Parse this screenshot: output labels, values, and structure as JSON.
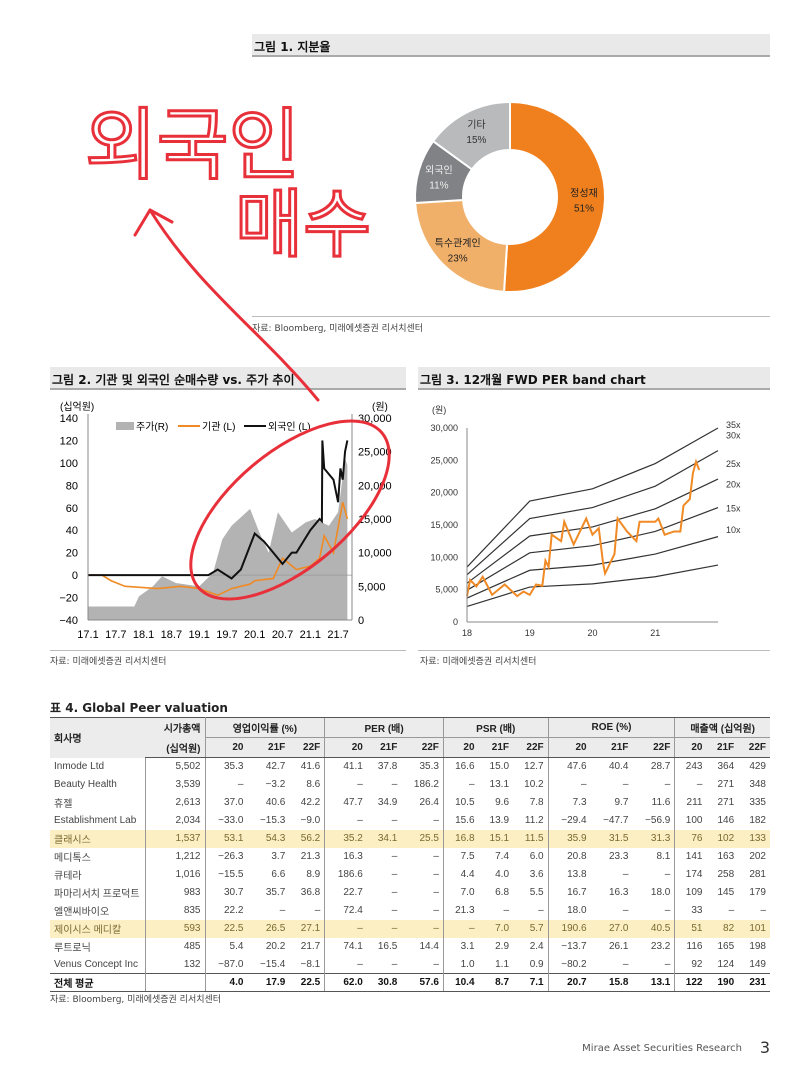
{
  "fig1": {
    "title": "그림 1. 지분율",
    "source": "자료: Bloomberg, 미래에셋증권 리서치센터",
    "slices": [
      {
        "label": "정성재",
        "pct": 51,
        "value_label": "51%",
        "color": "#f0801e"
      },
      {
        "label": "특수관계인",
        "pct": 23,
        "value_label": "23%",
        "color": "#f1b06a"
      },
      {
        "label": "외국인",
        "pct": 11,
        "value_label": "11%",
        "color": "#808285"
      },
      {
        "label": "기타",
        "pct": 15,
        "value_label": "15%",
        "color": "#b9babc"
      }
    ]
  },
  "annotation": {
    "line1": "외국인",
    "line2": "매수",
    "color": "#e8303a"
  },
  "fig2": {
    "title": "그림 2. 기관 및 외국인 순매수량 vs. 주가 추이",
    "source": "자료: 미래에셋증권 리서치센터"
  },
  "fig3": {
    "title": "그림 3. 12개월 FWD PER band chart",
    "source": "자료: 미래에셋증권 리서치센터"
  },
  "chart_data": [
    {
      "type": "line",
      "title": "기관 및 외국인 순매수량 vs. 주가 추이",
      "ylabel": "(십억원)",
      "y2label": "(원)",
      "ylim": [
        -40,
        140
      ],
      "y2lim": [
        0,
        30000
      ],
      "yticks": [
        "140",
        "120",
        "100",
        "80",
        "60",
        "40",
        "20",
        "0",
        "−20",
        "−40"
      ],
      "y2ticks": [
        "30,000",
        "25,000",
        "20,000",
        "15,000",
        "10,000",
        "5,000",
        "0"
      ],
      "xticks": [
        "17.1",
        "17.7",
        "18.1",
        "18.7",
        "19.1",
        "19.7",
        "20.1",
        "20.7",
        "21.1",
        "21.7"
      ],
      "x_unit": "months since 17.1",
      "series": [
        {
          "name": "주가(R)",
          "kind": "area",
          "color": "#b3b3b3",
          "points": [
            [
              0,
              2000
            ],
            [
              10,
              2000
            ],
            [
              11,
              3500
            ],
            [
              14,
              5000
            ],
            [
              16,
              6500
            ],
            [
              19,
              5500
            ],
            [
              24,
              5000
            ],
            [
              27,
              7000
            ],
            [
              29,
              12000
            ],
            [
              31,
              14000
            ],
            [
              35,
              16500
            ],
            [
              37,
              13000
            ],
            [
              39,
              10000
            ],
            [
              41,
              16000
            ],
            [
              44,
              13000
            ],
            [
              47,
              14500
            ],
            [
              49,
              15000
            ],
            [
              52,
              14000
            ],
            [
              54,
              16000
            ],
            [
              55.5,
              24000
            ],
            [
              56,
              23000
            ]
          ]
        },
        {
          "name": "기관 (L)",
          "kind": "line",
          "color": "#f08a24",
          "points": [
            [
              0,
              0
            ],
            [
              3,
              0
            ],
            [
              5,
              -5
            ],
            [
              8,
              -10
            ],
            [
              15,
              -12
            ],
            [
              20,
              -10
            ],
            [
              24,
              -12
            ],
            [
              28,
              -18
            ],
            [
              31,
              -12
            ],
            [
              33,
              -10
            ],
            [
              35,
              -8
            ],
            [
              36,
              -5
            ],
            [
              40,
              -3
            ],
            [
              42,
              15
            ],
            [
              45,
              5
            ],
            [
              48,
              8
            ],
            [
              50,
              15
            ],
            [
              51,
              35
            ],
            [
              53,
              20
            ],
            [
              55,
              65
            ],
            [
              56,
              50
            ]
          ]
        },
        {
          "name": "외국인 (L)",
          "kind": "line",
          "color": "#111111",
          "points": [
            [
              0,
              0
            ],
            [
              26,
              0
            ],
            [
              28,
              5
            ],
            [
              31,
              -3
            ],
            [
              33,
              5
            ],
            [
              36,
              37
            ],
            [
              38,
              30
            ],
            [
              40,
              20
            ],
            [
              42,
              10
            ],
            [
              44,
              20
            ],
            [
              45,
              20
            ],
            [
              48,
              40
            ],
            [
              50,
              50
            ],
            [
              50.5,
              48
            ],
            [
              50.6,
              120
            ],
            [
              51,
              95
            ],
            [
              53,
              85
            ],
            [
              54,
              65
            ],
            [
              54.5,
              95
            ],
            [
              55,
              85
            ],
            [
              55.5,
              110
            ],
            [
              56,
              120
            ]
          ]
        }
      ]
    },
    {
      "type": "line",
      "title": "12개월 FWD PER band chart",
      "ylabel": "(원)",
      "ylim": [
        0,
        30000
      ],
      "xlim": [
        18,
        22
      ],
      "yticks": [
        "30,000",
        "25,000",
        "20,000",
        "15,000",
        "10,000",
        "5,000",
        "0"
      ],
      "xticks": [
        "18",
        "19",
        "20",
        "21"
      ],
      "bands": [
        {
          "name": "35x",
          "values": [
            8500,
            18700,
            20600,
            24500,
            30000
          ]
        },
        {
          "name": "30x",
          "values": [
            7300,
            16000,
            17700,
            21000,
            26500
          ]
        },
        {
          "name": "25x",
          "values": [
            6000,
            13300,
            14700,
            17500,
            22100
          ]
        },
        {
          "name": "20x",
          "values": [
            4900,
            10700,
            11800,
            14000,
            17700
          ]
        },
        {
          "name": "15x",
          "values": [
            3700,
            8000,
            8800,
            10500,
            13200
          ]
        },
        {
          "name": "10x",
          "values": [
            2400,
            5400,
            5900,
            7000,
            8800
          ]
        }
      ],
      "band_x": [
        18,
        19,
        20,
        21,
        22
      ],
      "price": {
        "color": "#f08a24",
        "points": [
          [
            18,
            4000
          ],
          [
            18.05,
            6500
          ],
          [
            18.15,
            5500
          ],
          [
            18.25,
            7000
          ],
          [
            18.4,
            4200
          ],
          [
            18.6,
            5800
          ],
          [
            18.8,
            4000
          ],
          [
            18.9,
            4700
          ],
          [
            19,
            4200
          ],
          [
            19.1,
            5800
          ],
          [
            19.2,
            5600
          ],
          [
            19.25,
            9500
          ],
          [
            19.3,
            8500
          ],
          [
            19.35,
            13500
          ],
          [
            19.5,
            12500
          ],
          [
            19.55,
            15500
          ],
          [
            19.7,
            12000
          ],
          [
            19.8,
            14000
          ],
          [
            19.9,
            16000
          ],
          [
            20,
            13500
          ],
          [
            20.1,
            14500
          ],
          [
            20.17,
            9000
          ],
          [
            20.2,
            7500
          ],
          [
            20.35,
            10500
          ],
          [
            20.4,
            16000
          ],
          [
            20.55,
            14000
          ],
          [
            20.7,
            12500
          ],
          [
            20.75,
            15500
          ],
          [
            21,
            15500
          ],
          [
            21.05,
            16000
          ],
          [
            21.15,
            13500
          ],
          [
            21.3,
            14000
          ],
          [
            21.4,
            14000
          ],
          [
            21.45,
            18000
          ],
          [
            21.55,
            19000
          ],
          [
            21.6,
            23000
          ],
          [
            21.65,
            24800
          ],
          [
            21.7,
            23500
          ]
        ]
      }
    }
  ],
  "table": {
    "title": "표 4. Global Peer valuation",
    "source": "자료: Bloomberg, 미래에셋증권 리서치센터",
    "col_name": "회사명",
    "col_mcap": [
      "시가총액",
      "(십억원)"
    ],
    "groups": [
      "영업이익률 (%)",
      "PER (배)",
      "PSR (배)",
      "ROE (%)",
      "매출액 (십억원)"
    ],
    "years": [
      "20",
      "21F",
      "22F"
    ],
    "rows": [
      {
        "name": "Inmode Ltd",
        "v": [
          "5,502",
          "35.3",
          "42.7",
          "41.6",
          "41.1",
          "37.8",
          "35.3",
          "16.6",
          "15.0",
          "12.7",
          "47.6",
          "40.4",
          "28.7",
          "243",
          "364",
          "429"
        ]
      },
      {
        "name": "Beauty Health",
        "v": [
          "3,539",
          "–",
          "−3.2",
          "8.6",
          "–",
          "–",
          "186.2",
          "–",
          "13.1",
          "10.2",
          "–",
          "–",
          "–",
          "–",
          "271",
          "348"
        ]
      },
      {
        "name": "휴젤",
        "v": [
          "2,613",
          "37.0",
          "40.6",
          "42.2",
          "47.7",
          "34.9",
          "26.4",
          "10.5",
          "9.6",
          "7.8",
          "7.3",
          "9.7",
          "11.6",
          "211",
          "271",
          "335"
        ]
      },
      {
        "name": "Establishment Lab",
        "v": [
          "2,034",
          "−33.0",
          "−15.3",
          "−9.0",
          "–",
          "–",
          "–",
          "15.6",
          "13.9",
          "11.2",
          "−29.4",
          "−47.7",
          "−56.9",
          "100",
          "146",
          "182"
        ]
      },
      {
        "name": "클래시스",
        "hl": true,
        "v": [
          "1,537",
          "53.1",
          "54.3",
          "56.2",
          "35.2",
          "34.1",
          "25.5",
          "16.8",
          "15.1",
          "11.5",
          "35.9",
          "31.5",
          "31.3",
          "76",
          "102",
          "133"
        ]
      },
      {
        "name": "메디톡스",
        "v": [
          "1,212",
          "−26.3",
          "3.7",
          "21.3",
          "16.3",
          "–",
          "–",
          "7.5",
          "7.4",
          "6.0",
          "20.8",
          "23.3",
          "8.1",
          "141",
          "163",
          "202"
        ]
      },
      {
        "name": "큐테라",
        "v": [
          "1,016",
          "−15.5",
          "6.6",
          "8.9",
          "186.6",
          "–",
          "–",
          "4.4",
          "4.0",
          "3.6",
          "13.8",
          "–",
          "–",
          "174",
          "258",
          "281"
        ]
      },
      {
        "name": "파마리서치 프로덕트",
        "v": [
          "983",
          "30.7",
          "35.7",
          "36.8",
          "22.7",
          "–",
          "–",
          "7.0",
          "6.8",
          "5.5",
          "16.7",
          "16.3",
          "18.0",
          "109",
          "145",
          "179"
        ]
      },
      {
        "name": "엘앤씨바이오",
        "v": [
          "835",
          "22.2",
          "–",
          "–",
          "72.4",
          "–",
          "–",
          "21.3",
          "–",
          "–",
          "18.0",
          "–",
          "–",
          "33",
          "–",
          "–"
        ]
      },
      {
        "name": "제이시스 메디칼",
        "hl": true,
        "v": [
          "593",
          "22.5",
          "26.5",
          "27.1",
          "–",
          "–",
          "–",
          "–",
          "7.0",
          "5.7",
          "190.6",
          "27.0",
          "40.5",
          "51",
          "82",
          "101"
        ]
      },
      {
        "name": "루트로닉",
        "v": [
          "485",
          "5.4",
          "20.2",
          "21.7",
          "74.1",
          "16.5",
          "14.4",
          "3.1",
          "2.9",
          "2.4",
          "−13.7",
          "26.1",
          "23.2",
          "116",
          "165",
          "198"
        ]
      },
      {
        "name": "Venus Concept Inc",
        "v": [
          "132",
          "−87.0",
          "−15.4",
          "−8.1",
          "–",
          "–",
          "–",
          "1.0",
          "1.1",
          "0.9",
          "−80.2",
          "–",
          "–",
          "92",
          "124",
          "149"
        ]
      }
    ],
    "avg": {
      "name": "전체 평균",
      "v": [
        "",
        "4.0",
        "17.9",
        "22.5",
        "62.0",
        "30.8",
        "57.6",
        "10.4",
        "8.7",
        "7.1",
        "20.7",
        "15.8",
        "13.1",
        "122",
        "190",
        "231"
      ]
    }
  },
  "footer": {
    "text": "Mirae Asset Securities Research",
    "page": "3"
  }
}
